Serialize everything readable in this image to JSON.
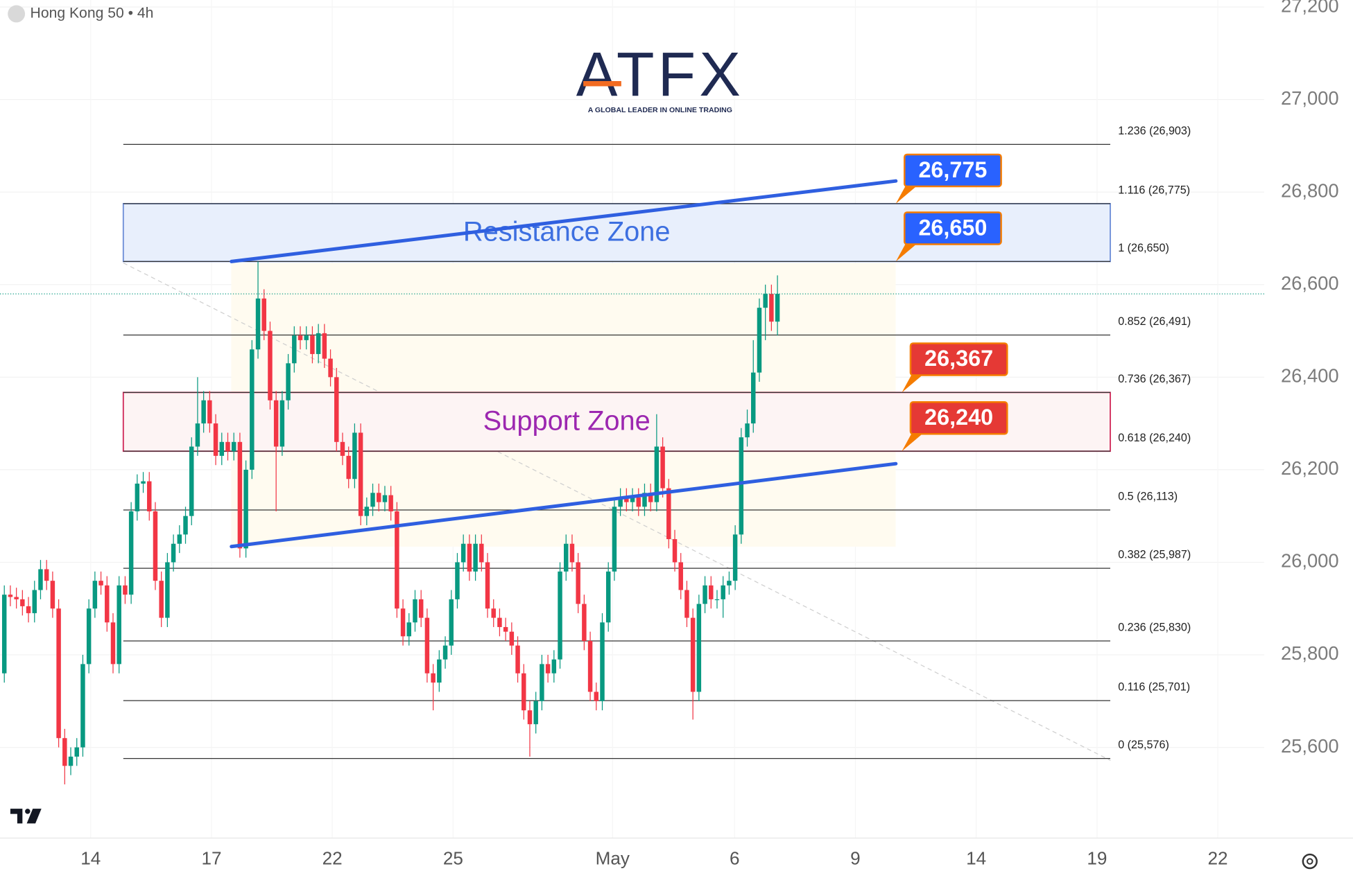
{
  "chart_data": {
    "type": "candlestick",
    "title": "Hong Kong 50 • 4h",
    "logo": {
      "name": "ATFX",
      "tagline": "A GLOBAL LEADER IN ONLINE TRADING"
    },
    "up_color": "#089981",
    "down_color": "#f23645",
    "xlim": [
      -0.714,
      208.57
    ],
    "ylim": [
      25404,
      27215
    ],
    "yticks": [
      {
        "value": 25600,
        "label": "25,600"
      },
      {
        "value": 25800,
        "label": "25,800"
      },
      {
        "value": 26000,
        "label": "26,000"
      },
      {
        "value": 26200,
        "label": "26,200"
      },
      {
        "value": 26400,
        "label": "26,400"
      },
      {
        "value": 26600,
        "label": "26,600"
      },
      {
        "value": 26800,
        "label": "26,800"
      },
      {
        "value": 27000,
        "label": "27,000"
      },
      {
        "value": 27200,
        "label": "27,200"
      }
    ],
    "xticks": [
      {
        "value": 14.3,
        "label": "14"
      },
      {
        "value": 34.3,
        "label": "17"
      },
      {
        "value": 54.3,
        "label": "22"
      },
      {
        "value": 74.3,
        "label": "25"
      },
      {
        "value": 100.7,
        "label": "May"
      },
      {
        "value": 120.9,
        "label": "6"
      },
      {
        "value": 140.9,
        "label": "9"
      },
      {
        "value": 160.9,
        "label": "14"
      },
      {
        "value": 180.9,
        "label": "19"
      },
      {
        "value": 200.9,
        "label": "22"
      }
    ],
    "grid": true,
    "open": [
      25760,
      25930,
      25925,
      25920,
      25905,
      25890,
      25940,
      25985,
      25960,
      25900,
      25620,
      25560,
      25580,
      25600,
      25780,
      25900,
      25960,
      25950,
      25870,
      25780,
      25950,
      25930,
      26110,
      26170,
      26175,
      26110,
      25960,
      25880,
      26000,
      26040,
      26060,
      26100,
      26250,
      26300,
      26350,
      26300,
      26230,
      26260,
      26240,
      26260,
      26030,
      26200,
      26460,
      26570,
      26500,
      26350,
      26250,
      26350,
      26430,
      26490,
      26480,
      26490,
      26450,
      26495,
      26440,
      26400,
      26260,
      26230,
      26180,
      26280,
      26100,
      26120,
      26150,
      26130,
      26145,
      26110,
      25900,
      25840,
      25870,
      25920,
      25880,
      25760,
      25740,
      25790,
      25820,
      25920,
      26000,
      26040,
      25980,
      26040,
      26000,
      25900,
      25880,
      25860,
      25850,
      25820,
      25760,
      25680,
      25650,
      25700,
      25780,
      25760,
      25790,
      25980,
      26040,
      26000,
      25910,
      25830,
      25720,
      25700,
      25870,
      25980,
      26120,
      26140,
      26130,
      26140,
      26120,
      26150,
      26130,
      26250,
      26160,
      26050,
      26000,
      25940,
      25880,
      25720,
      25910,
      25950,
      25920,
      25920,
      25950,
      25960,
      26060,
      26270,
      26300,
      26410,
      26550,
      26580,
      26520
    ],
    "high": [
      25950,
      25950,
      25945,
      25940,
      25925,
      25960,
      26005,
      26005,
      25980,
      25920,
      25640,
      25600,
      25620,
      25800,
      25920,
      25980,
      25980,
      25970,
      25890,
      25970,
      25970,
      26130,
      26190,
      26195,
      26195,
      26130,
      25980,
      26020,
      26060,
      26080,
      26120,
      26270,
      26400,
      26370,
      26370,
      26320,
      26280,
      26280,
      26280,
      26280,
      26220,
      26480,
      26650,
      26590,
      26520,
      26370,
      26370,
      26450,
      26510,
      26510,
      26510,
      26510,
      26515,
      26515,
      26460,
      26420,
      26280,
      26250,
      26300,
      26300,
      26140,
      26170,
      26170,
      26165,
      26165,
      26130,
      25920,
      25890,
      25940,
      25940,
      25900,
      25780,
      25810,
      25840,
      25940,
      26020,
      26060,
      26060,
      26060,
      26060,
      26020,
      25920,
      25900,
      25880,
      25870,
      25840,
      25780,
      25700,
      25720,
      25800,
      25800,
      25810,
      26000,
      26060,
      26060,
      26020,
      25930,
      25850,
      25740,
      25890,
      26000,
      26140,
      26160,
      26160,
      26160,
      26160,
      26170,
      26170,
      26320,
      26270,
      26180,
      26070,
      26020,
      25960,
      25900,
      25930,
      25970,
      25970,
      25940,
      25970,
      25980,
      26080,
      26290,
      26330,
      26480,
      26570,
      26600,
      26600,
      26620
    ],
    "low": [
      25740,
      25905,
      25900,
      25885,
      25870,
      25870,
      25920,
      25940,
      25880,
      25600,
      25520,
      25540,
      25560,
      25580,
      25760,
      25880,
      25930,
      25850,
      25760,
      25760,
      25910,
      25910,
      26090,
      26150,
      26090,
      25940,
      25860,
      25860,
      25980,
      26020,
      26040,
      26080,
      26230,
      26280,
      26280,
      26210,
      26210,
      26220,
      26220,
      26010,
      26010,
      26180,
      26440,
      26480,
      26330,
      26110,
      26230,
      26330,
      26410,
      26460,
      26460,
      26430,
      26430,
      26420,
      26380,
      26240,
      26210,
      26160,
      26160,
      26080,
      26080,
      26100,
      26110,
      26110,
      26090,
      25880,
      25820,
      25820,
      25850,
      25860,
      25740,
      25680,
      25720,
      25770,
      25800,
      25900,
      25980,
      25960,
      25960,
      25980,
      25880,
      25860,
      25840,
      25830,
      25800,
      25740,
      25660,
      25580,
      25630,
      25680,
      25740,
      25740,
      25770,
      25960,
      25980,
      25890,
      25810,
      25700,
      25680,
      25680,
      25850,
      25960,
      26100,
      26110,
      26110,
      26100,
      26100,
      26110,
      26110,
      26140,
      26030,
      25980,
      25920,
      25860,
      25660,
      25700,
      25890,
      25900,
      25900,
      25880,
      25930,
      25940,
      26040,
      26250,
      26280,
      26390,
      26480,
      26500,
      26490
    ],
    "close": [
      25930,
      25925,
      25920,
      25905,
      25890,
      25940,
      25985,
      25960,
      25900,
      25620,
      25560,
      25580,
      25600,
      25780,
      25900,
      25960,
      25950,
      25870,
      25780,
      25950,
      25930,
      26110,
      26170,
      26175,
      26110,
      25960,
      25880,
      26000,
      26040,
      26060,
      26100,
      26250,
      26300,
      26350,
      26300,
      26230,
      26260,
      26240,
      26260,
      26030,
      26200,
      26460,
      26570,
      26500,
      26350,
      26250,
      26350,
      26430,
      26490,
      26480,
      26490,
      26450,
      26495,
      26440,
      26400,
      26260,
      26230,
      26180,
      26280,
      26100,
      26120,
      26150,
      26130,
      26145,
      26110,
      25900,
      25840,
      25870,
      25920,
      25880,
      25760,
      25740,
      25790,
      25820,
      25920,
      26000,
      26040,
      25980,
      26040,
      26000,
      25900,
      25880,
      25860,
      25850,
      25820,
      25760,
      25680,
      25650,
      25700,
      25780,
      25760,
      25790,
      25980,
      26040,
      26000,
      25910,
      25830,
      25720,
      25700,
      25870,
      25980,
      26120,
      26140,
      26130,
      26140,
      26120,
      26150,
      26130,
      26250,
      26160,
      26050,
      26000,
      25940,
      25880,
      25720,
      25910,
      25950,
      25920,
      25920,
      25950,
      25960,
      26060,
      26270,
      26300,
      26410,
      26550,
      26580,
      26520,
      26580
    ],
    "fib_x": [
      19.7,
      183.1
    ],
    "fib_levels": [
      {
        "value": 26903,
        "label": "1.236 (26,903)"
      },
      {
        "value": 26775,
        "label": "1.116 (26,775)"
      },
      {
        "value": 26650,
        "label": "1 (26,650)"
      },
      {
        "value": 26491,
        "label": "0.852 (26,491)"
      },
      {
        "value": 26367,
        "label": "0.736 (26,367)"
      },
      {
        "value": 26240,
        "label": "0.618 (26,240)"
      },
      {
        "value": 26113,
        "label": "0.5 (26,113)"
      },
      {
        "value": 25987,
        "label": "0.382 (25,987)"
      },
      {
        "value": 25830,
        "label": "0.236 (25,830)"
      },
      {
        "value": 25701,
        "label": "0.116 (25,701)"
      },
      {
        "value": 25576,
        "label": "0 (25,576)"
      }
    ],
    "zones": [
      {
        "label": "Resistance Zone",
        "from": 26650,
        "to": 26775,
        "fill": "#e8effc",
        "stroke": "#6f8fd8",
        "text_color": "#3d6fe0"
      },
      {
        "label": "Support Zone",
        "from": 26240,
        "to": 26367,
        "fill": "#fdf4f4",
        "stroke": "#d12c5c",
        "text_color": "#9c27b0"
      }
    ],
    "trendlines": [
      {
        "x": [
          37.6,
          147.6
        ],
        "y": [
          26650,
          26824
        ],
        "color": "#2f5fe0"
      },
      {
        "x": [
          37.6,
          147.6
        ],
        "y": [
          26034,
          26213
        ],
        "color": "#2f5fe0"
      }
    ],
    "callouts": [
      {
        "label": "26,775",
        "value": 26775,
        "x": 147.6,
        "color": "#2962ff"
      },
      {
        "label": "26,650",
        "value": 26650,
        "x": 147.6,
        "color": "#2962ff"
      },
      {
        "label": "26,367",
        "value": 26367,
        "x": 148.6,
        "color": "#e53935"
      },
      {
        "label": "26,240",
        "value": 26240,
        "x": 148.6,
        "color": "#e53935"
      }
    ]
  }
}
